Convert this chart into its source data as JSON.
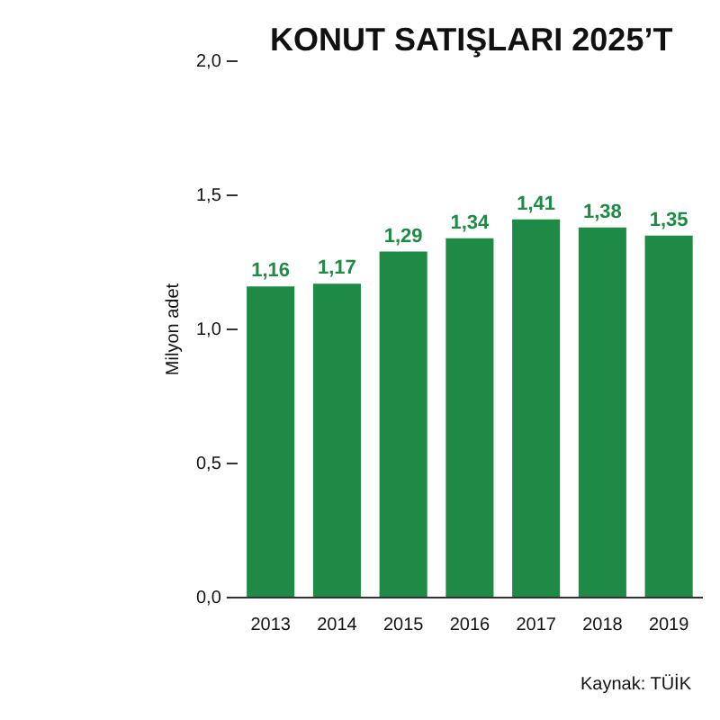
{
  "chart_data": {
    "type": "bar",
    "title": "KONUT SATIŞLARI 2025’T",
    "ylabel": "Milyon adet",
    "categories": [
      "2013",
      "2014",
      "2015",
      "2016",
      "2017",
      "2018",
      "2019"
    ],
    "values": [
      1.16,
      1.17,
      1.29,
      1.34,
      1.41,
      1.38,
      1.35
    ],
    "value_labels": [
      "1,16",
      "1,17",
      "1,29",
      "1,34",
      "1,41",
      "1,38",
      "1,35"
    ],
    "color": "#1f8a45",
    "ylim": [
      0,
      2
    ],
    "yticks": [
      {
        "value": 0,
        "label": "0,0"
      },
      {
        "value": 0.5,
        "label": "0,5"
      },
      {
        "value": 1,
        "label": "1,0"
      },
      {
        "value": 1.5,
        "label": "1,5"
      },
      {
        "value": 2,
        "label": "2,0"
      }
    ],
    "grid": false,
    "legend": false,
    "annotations": [
      "Kaynak: TÜİK"
    ]
  }
}
